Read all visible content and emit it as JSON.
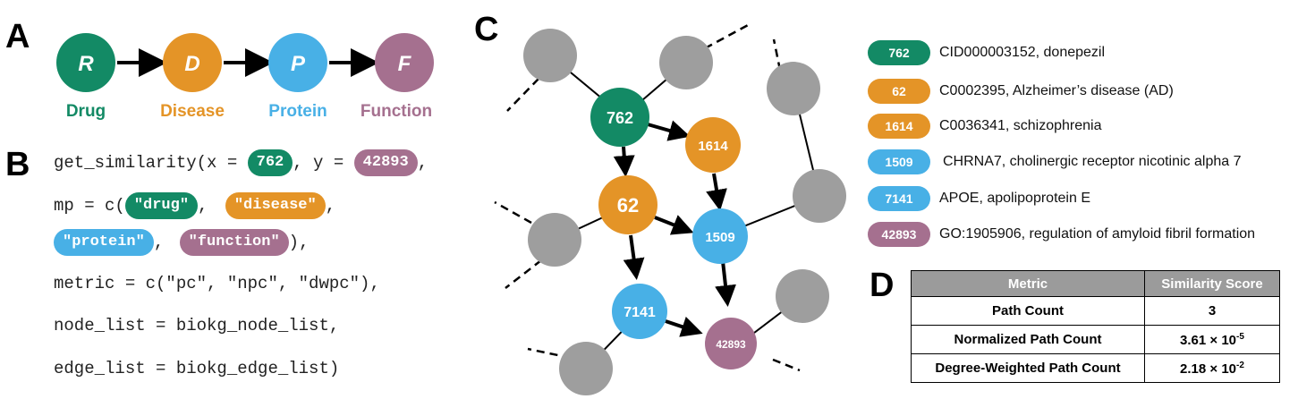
{
  "panels": {
    "a": "A",
    "b": "B",
    "c": "C",
    "d": "D"
  },
  "panel_a": {
    "nodes": [
      {
        "letter": "R",
        "label": "Drug",
        "color": "#138a65"
      },
      {
        "letter": "D",
        "label": "Disease",
        "color": "#e49427"
      },
      {
        "letter": "P",
        "label": "Protein",
        "color": "#48b0e6"
      },
      {
        "letter": "F",
        "label": "Function",
        "color": "#a5708f"
      }
    ]
  },
  "panel_b": {
    "line1_prefix": "get_similarity(x = ",
    "x_value": "762",
    "line1_mid": ", y = ",
    "y_value": "42893",
    "line1_suffix": ",",
    "line2_prefix": "mp = c(",
    "mp_1": "\"drug\"",
    "sep1": ", ",
    "mp_2": "\"disease\"",
    "line2_suffix": ",",
    "mp_3": "\"protein\"",
    "sep2": ", ",
    "mp_4": "\"function\"",
    "line3_suffix": "),",
    "line4": "metric = c(\"pc\", \"npc\", \"dwpc\"),",
    "line5": "node_list = biokg_node_list,",
    "line6": "edge_list = biokg_edge_list)"
  },
  "panel_c": {
    "nodes": {
      "n762": "762",
      "n1614": "1614",
      "n62": "62",
      "n1509": "1509",
      "n7141": "7141",
      "n42893": "42893"
    }
  },
  "legend": [
    {
      "id": "762",
      "text": "CID000003152, donepezil",
      "color": "#138a65"
    },
    {
      "id": "62",
      "text": "C0002395, Alzheimer’s disease (AD)",
      "color": "#e49427"
    },
    {
      "id": "1614",
      "text": "C0036341, schizophrenia",
      "color": "#e49427"
    },
    {
      "id": "1509",
      "text": "CHRNA7, cholinergic receptor nicotinic alpha 7",
      "color": "#48b0e6"
    },
    {
      "id": "7141",
      "text": "APOE, apolipoprotein E",
      "color": "#48b0e6"
    },
    {
      "id": "42893",
      "text": "GO:1905906, regulation of amyloid fibril formation",
      "color": "#a5708f"
    }
  ],
  "table": {
    "headers": [
      "Metric",
      "Similarity Score"
    ],
    "rows": [
      {
        "metric": "Path Count",
        "score": "3"
      },
      {
        "metric": "Normalized Path Count",
        "score_base": "3.61 × 10",
        "score_exp": "-5"
      },
      {
        "metric": "Degree-Weighted Path Count",
        "score_base": "2.18 × 10",
        "score_exp": "-2"
      }
    ]
  }
}
